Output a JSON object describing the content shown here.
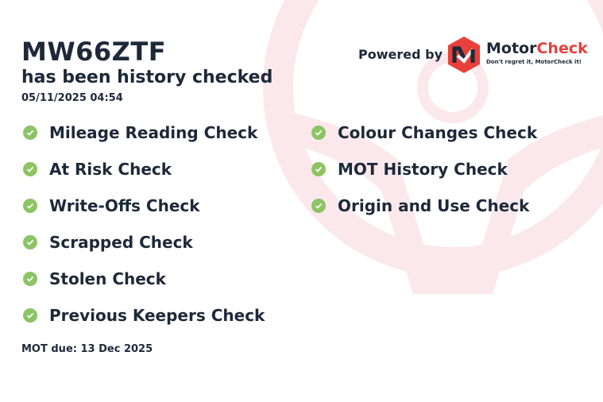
{
  "vehicle": {
    "registration": "MW66ZTF",
    "subtitle": "has been history checked",
    "checked_at": "05/11/2025 04:54"
  },
  "checks_left": [
    "Mileage Reading Check",
    "At Risk Check",
    "Write-Offs Check",
    "Scrapped Check",
    "Stolen Check",
    "Previous Keepers Check"
  ],
  "checks_right": [
    "Colour Changes Check",
    "MOT History Check",
    "Origin and Use Check"
  ],
  "mot_due": "MOT due: 13 Dec 2025",
  "branding": {
    "powered_by": "Powered by",
    "brand_part1": "Motor",
    "brand_part2": "Check",
    "tagline": "Don't regret it, MotorCheck it!"
  },
  "colors": {
    "text": "#1d2939",
    "check": "#8cc463",
    "brand_red": "#e8403a",
    "watermark": "#fbe8ec"
  },
  "icons": {
    "check": "check-circle-icon",
    "logo": "motorcheck-logo",
    "background": "steering-wheel-watermark"
  }
}
